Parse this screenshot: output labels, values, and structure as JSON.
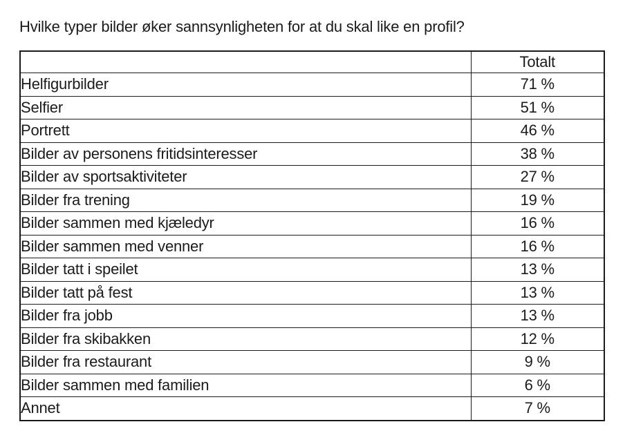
{
  "title": "Hvilke typer bilder øker sannsynligheten for at du skal like en profil?",
  "table": {
    "header_value_col": "Totalt",
    "rows": [
      {
        "label": "Helfigurbilder",
        "value": "71 %"
      },
      {
        "label": "Selfier",
        "value": "51 %"
      },
      {
        "label": "Portrett",
        "value": "46 %"
      },
      {
        "label": "Bilder av personens fritidsinteresser",
        "value": "38 %"
      },
      {
        "label": "Bilder av sportsaktiviteter",
        "value": "27 %"
      },
      {
        "label": "Bilder fra trening",
        "value": "19 %"
      },
      {
        "label": "Bilder sammen med kjæledyr",
        "value": "16 %"
      },
      {
        "label": "Bilder sammen med venner",
        "value": "16 %"
      },
      {
        "label": "Bilder tatt i speilet",
        "value": "13 %"
      },
      {
        "label": "Bilder tatt på fest",
        "value": "13 %"
      },
      {
        "label": "Bilder fra jobb",
        "value": "13 %"
      },
      {
        "label": "Bilder fra skibakken",
        "value": "12 %"
      },
      {
        "label": "Bilder fra restaurant",
        "value": "9 %"
      },
      {
        "label": "Bilder sammen med familien",
        "value": "6 %"
      },
      {
        "label": "Annet",
        "value": "7 %"
      }
    ]
  },
  "chart_data": {
    "type": "table",
    "title": "Hvilke typer bilder øker sannsynligheten for at du skal like en profil?",
    "columns": [
      "",
      "Totalt"
    ],
    "categories": [
      "Helfigurbilder",
      "Selfier",
      "Portrett",
      "Bilder av personens fritidsinteresser",
      "Bilder av sportsaktiviteter",
      "Bilder fra trening",
      "Bilder sammen med kjæledyr",
      "Bilder sammen med venner",
      "Bilder tatt i speilet",
      "Bilder tatt på fest",
      "Bilder fra jobb",
      "Bilder fra skibakken",
      "Bilder fra restaurant",
      "Bilder sammen med familien",
      "Annet"
    ],
    "values": [
      71,
      51,
      46,
      38,
      27,
      19,
      16,
      16,
      13,
      13,
      13,
      12,
      9,
      6,
      7
    ],
    "value_unit": "%"
  },
  "colors": {
    "background": "#ffffff",
    "text": "#1b1b1b",
    "border": "#1a1a1a"
  }
}
